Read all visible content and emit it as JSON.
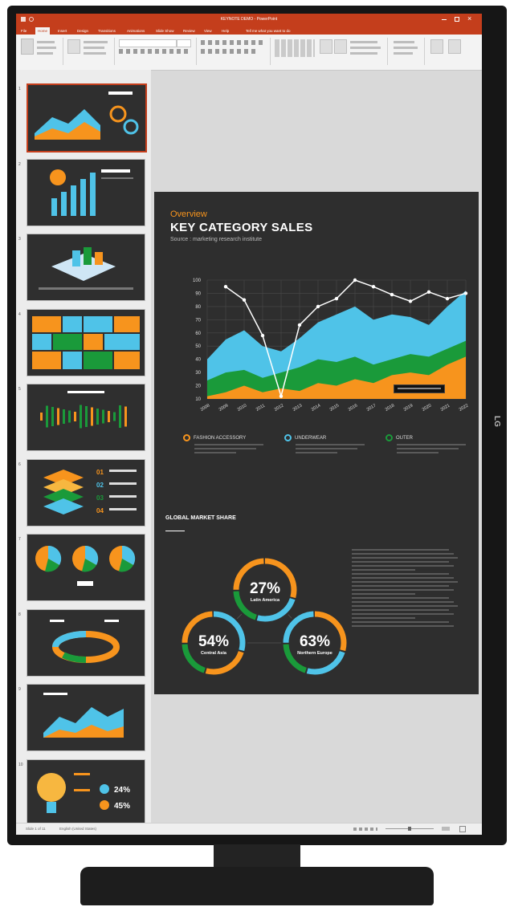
{
  "window": {
    "title": "KEYNOTE DEMO - PowerPoint",
    "tabs": [
      "File",
      "Home",
      "Insert",
      "Design",
      "Transitions",
      "Animations",
      "Slide Show",
      "Review",
      "View",
      "Help",
      "Tell me what you want to do"
    ],
    "active_tab": "Home"
  },
  "statusbar": {
    "slide_info": "Slide 1 of 11",
    "language": "English (United States)"
  },
  "brand": {
    "logo": "LG"
  },
  "thumbnails": [
    {
      "number": "1",
      "name": "area-chart-slide"
    },
    {
      "number": "2",
      "name": "bar-chart-slide"
    },
    {
      "number": "3",
      "name": "isometric-slide"
    },
    {
      "number": "4",
      "name": "tile-grid-slide"
    },
    {
      "number": "5",
      "name": "candlestick-slide"
    },
    {
      "number": "6",
      "name": "layer-stack-slide"
    },
    {
      "number": "7",
      "name": "pie-charts-slide"
    },
    {
      "number": "8",
      "name": "ring-chart-slide"
    },
    {
      "number": "9",
      "name": "area-chart-slide-2"
    },
    {
      "number": "10",
      "name": "lightbulb-slide"
    }
  ],
  "slide": {
    "overview_label": "Overview",
    "title": "KEY CATEGORY SALES",
    "subtitle": "Source : marketing research institute",
    "legend": [
      {
        "label": "FASHION ACCESSORY",
        "color": "#f7941d"
      },
      {
        "label": "UNDERWEAR",
        "color": "#4fc3e8"
      },
      {
        "label": "OUTER",
        "color": "#1a9a3a"
      }
    ],
    "market_share_title": "GLOBAL MARKET SHARE",
    "donuts": [
      {
        "pct": "27%",
        "label": "Latin America"
      },
      {
        "pct": "54%",
        "label": "Central Asia"
      },
      {
        "pct": "63%",
        "label": "Northern Europe"
      }
    ]
  },
  "chart_data": {
    "type": "area",
    "x": [
      "2008",
      "2009",
      "2010",
      "2011",
      "2012",
      "2013",
      "2014",
      "2015",
      "2016",
      "2017",
      "2018",
      "2019",
      "2020",
      "2021",
      "2022"
    ],
    "ylim": [
      10,
      100
    ],
    "yticks": [
      "100",
      "90",
      "80",
      "70",
      "60",
      "50",
      "40",
      "30",
      "20",
      "10"
    ],
    "series": [
      {
        "name": "FASHION ACCESSORY",
        "color": "#f7941d",
        "values": [
          12,
          15,
          20,
          15,
          18,
          16,
          22,
          20,
          25,
          22,
          28,
          30,
          28,
          36,
          42
        ]
      },
      {
        "name": "OUTER",
        "color": "#1a9a3a",
        "values": [
          24,
          30,
          32,
          26,
          30,
          34,
          40,
          38,
          42,
          36,
          40,
          44,
          42,
          48,
          54
        ]
      },
      {
        "name": "UNDERWEAR",
        "color": "#4fc3e8",
        "values": [
          40,
          55,
          62,
          50,
          46,
          56,
          68,
          74,
          80,
          70,
          74,
          72,
          66,
          80,
          92
        ]
      },
      {
        "name": "Total",
        "color": "#ffffff",
        "values": [
          null,
          95,
          85,
          58,
          12,
          66,
          80,
          86,
          100,
          95,
          89,
          84,
          91,
          86,
          90
        ]
      }
    ]
  }
}
